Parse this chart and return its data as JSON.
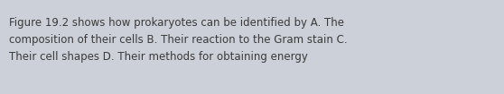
{
  "text": "Figure 19.2 shows how prokaryotes can be identified by A. The\ncomposition of their cells B. Their reaction to the Gram stain C.\nTheir cell shapes D. Their methods for obtaining energy",
  "background_color": "#ccd0d8",
  "text_color": "#3a3a3a",
  "font_size": 8.5,
  "fig_width": 5.58,
  "fig_height": 1.05,
  "dpi": 100
}
